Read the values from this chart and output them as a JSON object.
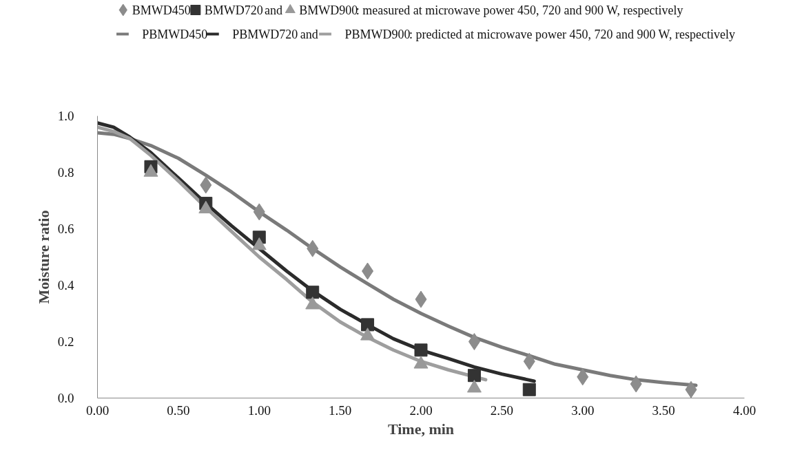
{
  "chart_data": {
    "type": "scatter",
    "xlabel": "Time, min",
    "ylabel": "Moisture ratio",
    "xlim": [
      0,
      4
    ],
    "ylim": [
      0,
      1
    ],
    "xticks": [
      {
        "value": 0,
        "label": "0.00"
      },
      {
        "value": 0.5,
        "label": "0.50"
      },
      {
        "value": 1,
        "label": "1.00"
      },
      {
        "value": 1.5,
        "label": "1.50"
      },
      {
        "value": 2,
        "label": "2.00"
      },
      {
        "value": 2.5,
        "label": "2.50"
      },
      {
        "value": 3,
        "label": "3.00"
      },
      {
        "value": 3.5,
        "label": "3.50"
      },
      {
        "value": 4,
        "label": "4.00"
      }
    ],
    "yticks": [
      {
        "value": 0,
        "label": "0.0"
      },
      {
        "value": 0.2,
        "label": "0.2"
      },
      {
        "value": 0.4,
        "label": "0.4"
      },
      {
        "value": 0.6,
        "label": "0.6"
      },
      {
        "value": 0.8,
        "label": "0.8"
      },
      {
        "value": 1,
        "label": "1.0"
      }
    ],
    "grid": false,
    "legend": "top",
    "annotations": [
      "and",
      ": measured at microwave power 450, 720 and 900 W, respectively",
      "and",
      ": predicted at microwave power 450, 720 and 900 W, respectively"
    ],
    "series": [
      {
        "name": "BMWD450",
        "marker": "diamond",
        "color": "#8c8c8c",
        "x": [
          0.67,
          1.0,
          1.33,
          1.67,
          2.0,
          2.33,
          2.67,
          3.0,
          3.33,
          3.67
        ],
        "values": [
          0.755,
          0.66,
          0.53,
          0.45,
          0.35,
          0.2,
          0.13,
          0.075,
          0.05,
          0.03
        ]
      },
      {
        "name": "BMWD720",
        "marker": "square",
        "color": "#333333",
        "x": [
          0.33,
          0.67,
          1.0,
          1.33,
          1.67,
          2.0,
          2.33,
          2.67
        ],
        "values": [
          0.82,
          0.69,
          0.57,
          0.375,
          0.26,
          0.17,
          0.08,
          0.03
        ]
      },
      {
        "name": "BMWD900",
        "marker": "triangle",
        "color": "#999999",
        "x": [
          0.33,
          0.67,
          1.0,
          1.33,
          1.67,
          2.0,
          2.33
        ],
        "values": [
          0.8,
          0.67,
          0.54,
          0.33,
          0.22,
          0.12,
          0.035
        ]
      },
      {
        "name": "PBMWD450",
        "type": "line",
        "line_style": "solid",
        "color": "#7a7a7a",
        "x": [
          0,
          0.1,
          0.2,
          0.33,
          0.5,
          0.67,
          0.83,
          1.0,
          1.17,
          1.33,
          1.5,
          1.67,
          1.83,
          2.0,
          2.17,
          2.33,
          2.5,
          2.67,
          2.83,
          3.0,
          3.17,
          3.33,
          3.5,
          3.7
        ],
        "values": [
          0.94,
          0.935,
          0.92,
          0.895,
          0.85,
          0.79,
          0.73,
          0.66,
          0.595,
          0.53,
          0.465,
          0.405,
          0.35,
          0.3,
          0.255,
          0.215,
          0.18,
          0.15,
          0.12,
          0.1,
          0.08,
          0.065,
          0.055,
          0.045
        ]
      },
      {
        "name": "PBMWD720",
        "type": "line",
        "line_style": "solid",
        "color": "#2b2b2b",
        "x": [
          0,
          0.1,
          0.2,
          0.33,
          0.5,
          0.67,
          0.83,
          1.0,
          1.17,
          1.33,
          1.5,
          1.67,
          1.83,
          2.0,
          2.17,
          2.33,
          2.5,
          2.7
        ],
        "values": [
          0.975,
          0.96,
          0.925,
          0.87,
          0.78,
          0.69,
          0.61,
          0.53,
          0.45,
          0.38,
          0.315,
          0.26,
          0.21,
          0.17,
          0.14,
          0.11,
          0.085,
          0.06
        ]
      },
      {
        "name": "PBMWD900",
        "type": "line",
        "line_style": "solid",
        "color": "#9e9e9e",
        "x": [
          0,
          0.1,
          0.2,
          0.33,
          0.5,
          0.67,
          0.83,
          1.0,
          1.17,
          1.33,
          1.5,
          1.67,
          1.83,
          2.0,
          2.17,
          2.4
        ],
        "values": [
          0.96,
          0.945,
          0.92,
          0.86,
          0.77,
          0.675,
          0.59,
          0.5,
          0.42,
          0.34,
          0.27,
          0.215,
          0.17,
          0.13,
          0.1,
          0.065
        ]
      }
    ]
  }
}
